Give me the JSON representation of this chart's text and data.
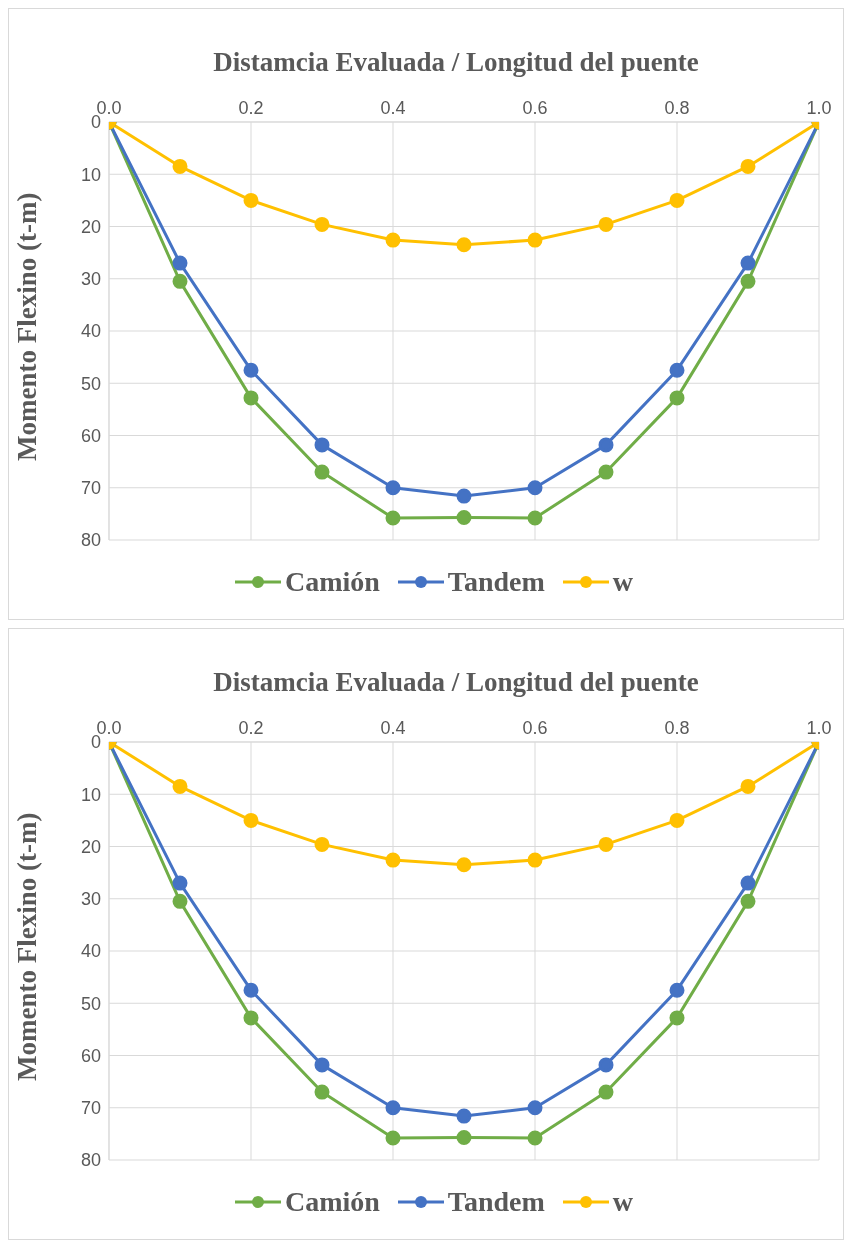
{
  "chart_data": [
    {
      "type": "line",
      "title": "Distamcia Evaluada / Longitud del puente",
      "ylabel": "Momento Flexino (t-m)",
      "x": [
        0,
        0.1,
        0.2,
        0.3,
        0.4,
        0.5,
        0.6,
        0.7,
        0.8,
        0.9,
        1.0
      ],
      "series": [
        {
          "name": "Camión",
          "color": "#70ad47",
          "values": [
            0,
            30.5,
            52.8,
            67,
            75.8,
            75.7,
            75.8,
            67,
            52.8,
            30.5,
            0
          ]
        },
        {
          "name": "Tandem",
          "color": "#4472c4",
          "values": [
            0,
            27,
            47.5,
            61.8,
            70,
            71.6,
            70,
            61.8,
            47.5,
            27,
            0
          ]
        },
        {
          "name": "w",
          "color": "#ffc000",
          "values": [
            0,
            8.5,
            15,
            19.6,
            22.6,
            23.5,
            22.6,
            19.6,
            15,
            8.5,
            0
          ]
        }
      ],
      "xlim": [
        0,
        1
      ],
      "xticks": [
        {
          "value": 0,
          "label": "0.0"
        },
        {
          "value": 0.2,
          "label": "0.2"
        },
        {
          "value": 0.4,
          "label": "0.4"
        },
        {
          "value": 0.6,
          "label": "0.6"
        },
        {
          "value": 0.8,
          "label": "0.8"
        },
        {
          "value": 1,
          "label": "1.0"
        }
      ],
      "ylim": [
        80,
        0
      ],
      "yticks": [
        0,
        10,
        20,
        30,
        40,
        50,
        60,
        70,
        80
      ],
      "grid": true,
      "legend": "bottom",
      "marker": "circle",
      "line_style": "solid"
    },
    {
      "type": "line",
      "title": "Distamcia Evaluada / Longitud del puente",
      "ylabel": "Momento Flexino (t-m)",
      "x": [
        0,
        0.1,
        0.2,
        0.3,
        0.4,
        0.5,
        0.6,
        0.7,
        0.8,
        0.9,
        1.0
      ],
      "series": [
        {
          "name": "Camión",
          "color": "#70ad47",
          "values": [
            0,
            30.5,
            52.8,
            67,
            75.8,
            75.7,
            75.8,
            67,
            52.8,
            30.5,
            0
          ]
        },
        {
          "name": "Tandem",
          "color": "#4472c4",
          "values": [
            0,
            27,
            47.5,
            61.8,
            70,
            71.6,
            70,
            61.8,
            47.5,
            27,
            0
          ]
        },
        {
          "name": "w",
          "color": "#ffc000",
          "values": [
            0,
            8.5,
            15,
            19.6,
            22.6,
            23.5,
            22.6,
            19.6,
            15,
            8.5,
            0
          ]
        }
      ],
      "xlim": [
        0,
        1
      ],
      "xticks": [
        {
          "value": 0,
          "label": "0.0"
        },
        {
          "value": 0.2,
          "label": "0.2"
        },
        {
          "value": 0.4,
          "label": "0.4"
        },
        {
          "value": 0.6,
          "label": "0.6"
        },
        {
          "value": 0.8,
          "label": "0.8"
        },
        {
          "value": 1,
          "label": "1.0"
        }
      ],
      "ylim": [
        80,
        0
      ],
      "yticks": [
        0,
        10,
        20,
        30,
        40,
        50,
        60,
        70,
        80
      ],
      "grid": true,
      "legend": "bottom",
      "marker": "circle",
      "line_style": "solid"
    }
  ]
}
